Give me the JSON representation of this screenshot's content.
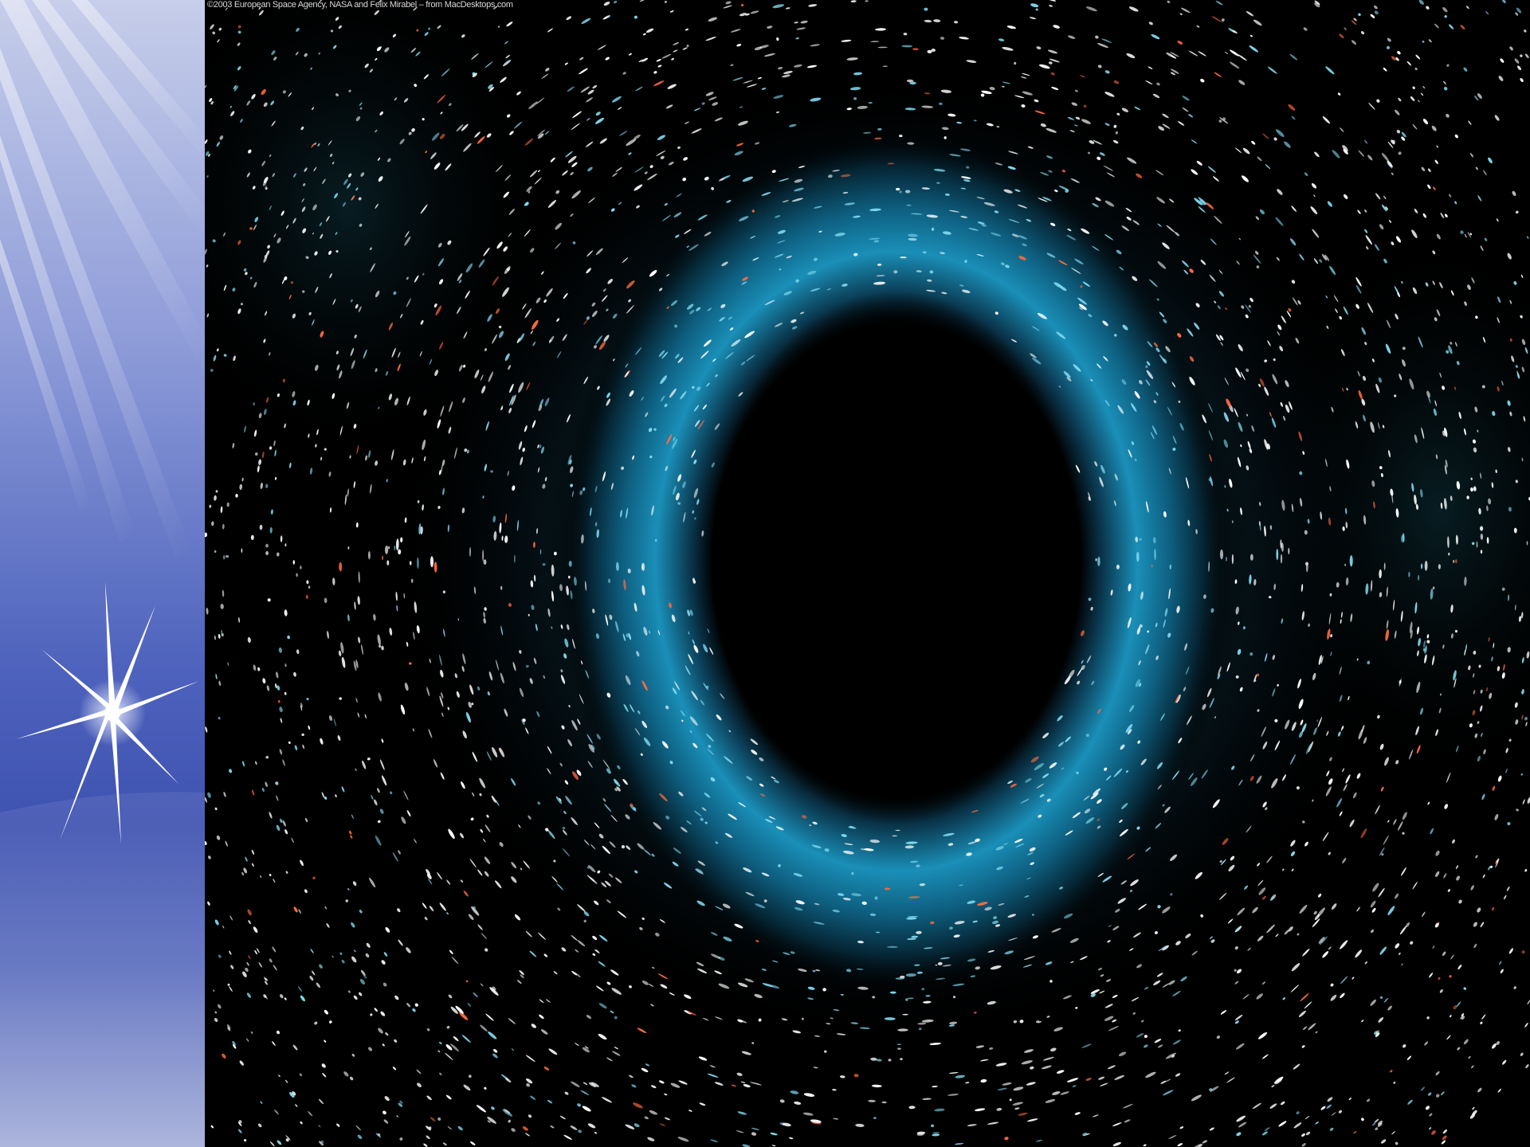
{
  "credit": {
    "text": "©2003 European Space Agency, NASA and Felix Mirabel – from MacDesktops.com"
  },
  "side_panel": {
    "icon": "sparkle-star-icon",
    "colors": {
      "top": "#c7ceea",
      "middle": "#3e52b0",
      "bottom": "#a5afd9"
    }
  },
  "space_image": {
    "icon": "black-hole-image",
    "colors": {
      "background": "#000000",
      "ring": "#1a8fb8",
      "star_white": "#ffffff",
      "star_cyan": "#7fd8ee",
      "star_orange": "#ff6a3d"
    }
  }
}
